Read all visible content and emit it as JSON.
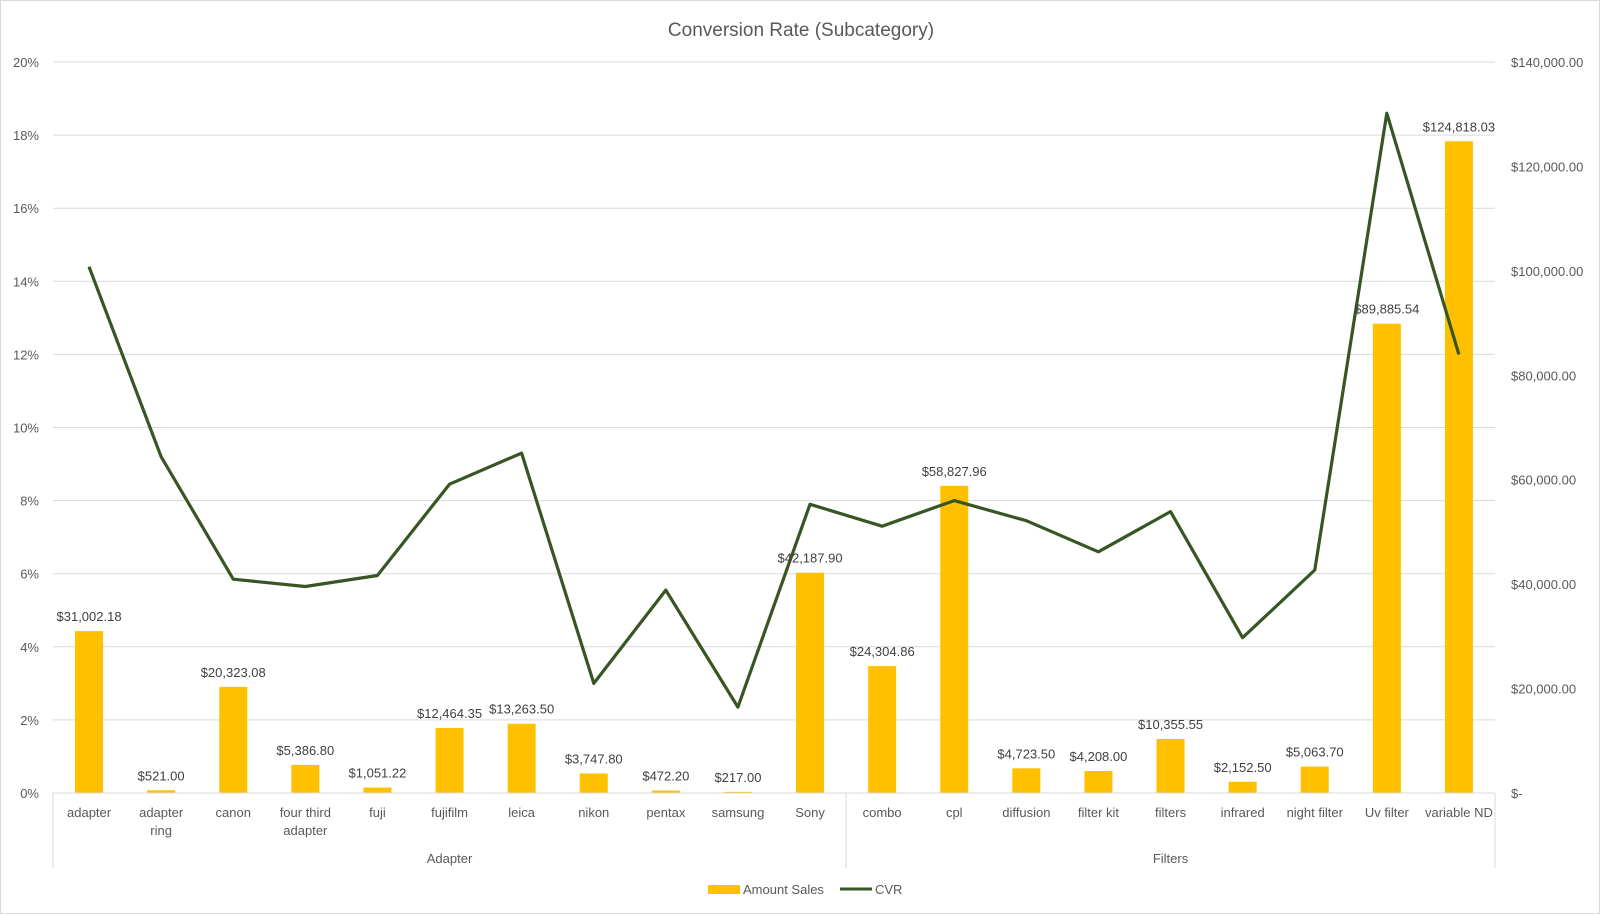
{
  "chart_data": {
    "type": "bar+line",
    "title": "Conversion Rate (Subcategory)",
    "groups": [
      {
        "name": "Adapter",
        "categories": [
          "adapter",
          "adapter ring",
          "canon",
          "four third adapter",
          "fuji",
          "fujifilm",
          "leica",
          "nikon",
          "pentax",
          "samsung",
          "Sony"
        ]
      },
      {
        "name": "Filters",
        "categories": [
          "combo",
          "cpl",
          "diffusion",
          "filter kit",
          "filters",
          "infrared",
          "night filter",
          "Uv filter",
          "variable ND"
        ]
      }
    ],
    "categories": [
      "adapter",
      "adapter ring",
      "canon",
      "four third adapter",
      "fuji",
      "fujifilm",
      "leica",
      "nikon",
      "pentax",
      "samsung",
      "Sony",
      "combo",
      "cpl",
      "diffusion",
      "filter kit",
      "filters",
      "infrared",
      "night filter",
      "Uv filter",
      "variable ND"
    ],
    "category_lines": [
      [
        "adapter"
      ],
      [
        "adapter",
        "ring"
      ],
      [
        "canon"
      ],
      [
        "four third",
        "adapter"
      ],
      [
        "fuji"
      ],
      [
        "fujifilm"
      ],
      [
        "leica"
      ],
      [
        "nikon"
      ],
      [
        "pentax"
      ],
      [
        "samsung"
      ],
      [
        "Sony"
      ],
      [
        "combo"
      ],
      [
        "cpl"
      ],
      [
        "diffusion"
      ],
      [
        "filter kit"
      ],
      [
        "filters"
      ],
      [
        "infrared"
      ],
      [
        "night filter"
      ],
      [
        "Uv filter"
      ],
      [
        "variable ND"
      ]
    ],
    "series": [
      {
        "name": "Amount Sales",
        "type": "bar",
        "axis": "right",
        "color": "#FFC000",
        "values": [
          31002.18,
          521.0,
          20323.08,
          5386.8,
          1051.22,
          12464.35,
          13263.5,
          3747.8,
          472.2,
          217.0,
          42187.9,
          24304.86,
          58827.96,
          4723.5,
          4208.0,
          10355.55,
          2152.5,
          5063.7,
          89885.54,
          124818.03
        ],
        "data_labels": [
          "$31,002.18",
          "$521.00",
          "$20,323.08",
          "$5,386.80",
          "$1,051.22",
          "$12,464.35",
          "$13,263.50",
          "$3,747.80",
          "$472.20",
          "$217.00",
          "$42,187.90",
          "$24,304.86",
          "$58,827.96",
          "$4,723.50",
          "$4,208.00",
          "$10,355.55",
          "$2,152.50",
          "$5,063.70",
          "$89,885.54",
          "$124,818.03"
        ]
      },
      {
        "name": "CVR",
        "type": "line",
        "axis": "left",
        "color": "#375623",
        "values": [
          14.4,
          9.2,
          5.85,
          5.65,
          5.95,
          8.45,
          9.3,
          3.0,
          5.55,
          2.35,
          7.9,
          7.3,
          8.0,
          7.45,
          6.6,
          7.7,
          4.25,
          6.1,
          18.6,
          12.0
        ]
      }
    ],
    "left_axis": {
      "min": 0,
      "max": 20,
      "step": 2,
      "tick_labels": [
        "0%",
        "2%",
        "4%",
        "6%",
        "8%",
        "10%",
        "12%",
        "14%",
        "16%",
        "18%",
        "20%"
      ]
    },
    "right_axis": {
      "min": 0,
      "max": 140000,
      "step": 20000,
      "tick_labels": [
        "$-",
        "$20,000.00",
        "$40,000.00",
        "$60,000.00",
        "$80,000.00",
        "$100,000.00",
        "$120,000.00",
        "$140,000.00"
      ]
    },
    "grid": true,
    "legend_position": "bottom"
  }
}
